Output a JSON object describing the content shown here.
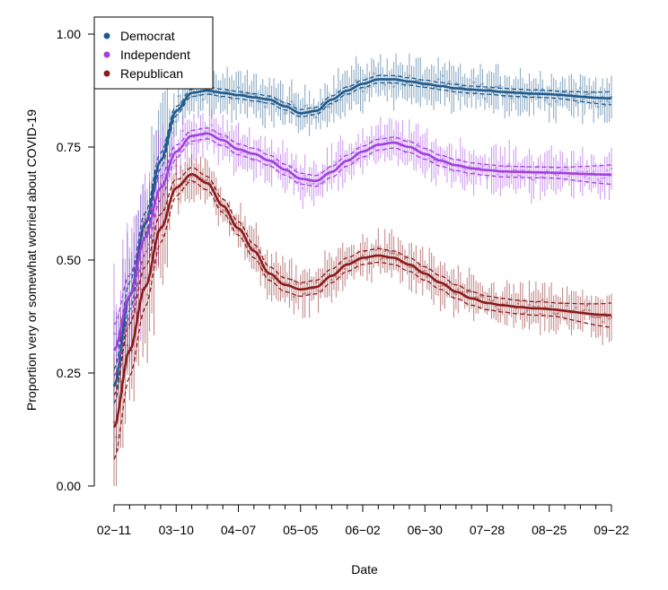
{
  "chart_data": {
    "type": "line",
    "xlabel": "Date",
    "ylabel": "Proportion very or somewhat worried about COVID-19",
    "x_ticks": [
      "02−11",
      "03−10",
      "04−07",
      "05−05",
      "06−02",
      "06−30",
      "07−28",
      "08−25",
      "09−22"
    ],
    "y_ticks": [
      "0.00",
      "0.25",
      "0.50",
      "0.75",
      "1.00"
    ],
    "x_range_days": [
      0,
      224
    ],
    "ylim": [
      0,
      1
    ],
    "grid": false,
    "legend_position": "top-left",
    "series": [
      {
        "name": "Democrat",
        "color": "#1f5a8c",
        "smooth": [
          [
            0,
            0.22
          ],
          [
            7,
            0.42
          ],
          [
            14,
            0.58
          ],
          [
            21,
            0.72
          ],
          [
            28,
            0.83
          ],
          [
            35,
            0.87
          ],
          [
            42,
            0.875
          ],
          [
            49,
            0.87
          ],
          [
            56,
            0.865
          ],
          [
            63,
            0.86
          ],
          [
            70,
            0.855
          ],
          [
            77,
            0.84
          ],
          [
            84,
            0.825
          ],
          [
            91,
            0.83
          ],
          [
            98,
            0.855
          ],
          [
            105,
            0.875
          ],
          [
            112,
            0.89
          ],
          [
            119,
            0.9
          ],
          [
            126,
            0.9
          ],
          [
            133,
            0.895
          ],
          [
            140,
            0.89
          ],
          [
            147,
            0.885
          ],
          [
            154,
            0.88
          ],
          [
            161,
            0.877
          ],
          [
            168,
            0.875
          ],
          [
            175,
            0.872
          ],
          [
            182,
            0.87
          ],
          [
            189,
            0.868
          ]
        ],
        "band": 0.008
      },
      {
        "name": "Independent",
        "color": "#a13fe0",
        "smooth": [
          [
            0,
            0.3
          ],
          [
            7,
            0.42
          ],
          [
            14,
            0.55
          ],
          [
            21,
            0.66
          ],
          [
            28,
            0.74
          ],
          [
            35,
            0.775
          ],
          [
            42,
            0.78
          ],
          [
            49,
            0.765
          ],
          [
            56,
            0.745
          ],
          [
            63,
            0.735
          ],
          [
            70,
            0.72
          ],
          [
            77,
            0.7
          ],
          [
            84,
            0.68
          ],
          [
            91,
            0.675
          ],
          [
            98,
            0.695
          ],
          [
            105,
            0.72
          ],
          [
            112,
            0.74
          ],
          [
            119,
            0.755
          ],
          [
            126,
            0.76
          ],
          [
            133,
            0.75
          ],
          [
            140,
            0.735
          ],
          [
            147,
            0.72
          ],
          [
            154,
            0.71
          ],
          [
            161,
            0.703
          ],
          [
            168,
            0.699
          ],
          [
            175,
            0.696
          ],
          [
            182,
            0.695
          ],
          [
            189,
            0.694
          ]
        ],
        "band": 0.012
      },
      {
        "name": "Republican",
        "color": "#8b1a1a",
        "smooth": [
          [
            0,
            0.13
          ],
          [
            7,
            0.3
          ],
          [
            14,
            0.44
          ],
          [
            21,
            0.57
          ],
          [
            28,
            0.66
          ],
          [
            35,
            0.69
          ],
          [
            42,
            0.67
          ],
          [
            49,
            0.62
          ],
          [
            56,
            0.57
          ],
          [
            63,
            0.52
          ],
          [
            70,
            0.47
          ],
          [
            77,
            0.445
          ],
          [
            84,
            0.435
          ],
          [
            91,
            0.44
          ],
          [
            98,
            0.465
          ],
          [
            105,
            0.49
          ],
          [
            112,
            0.505
          ],
          [
            119,
            0.51
          ],
          [
            126,
            0.505
          ],
          [
            133,
            0.49
          ],
          [
            140,
            0.47
          ],
          [
            147,
            0.45
          ],
          [
            154,
            0.43
          ],
          [
            161,
            0.415
          ],
          [
            168,
            0.405
          ],
          [
            175,
            0.4
          ],
          [
            182,
            0.396
          ],
          [
            189,
            0.393
          ]
        ],
        "band": 0.015
      }
    ]
  }
}
